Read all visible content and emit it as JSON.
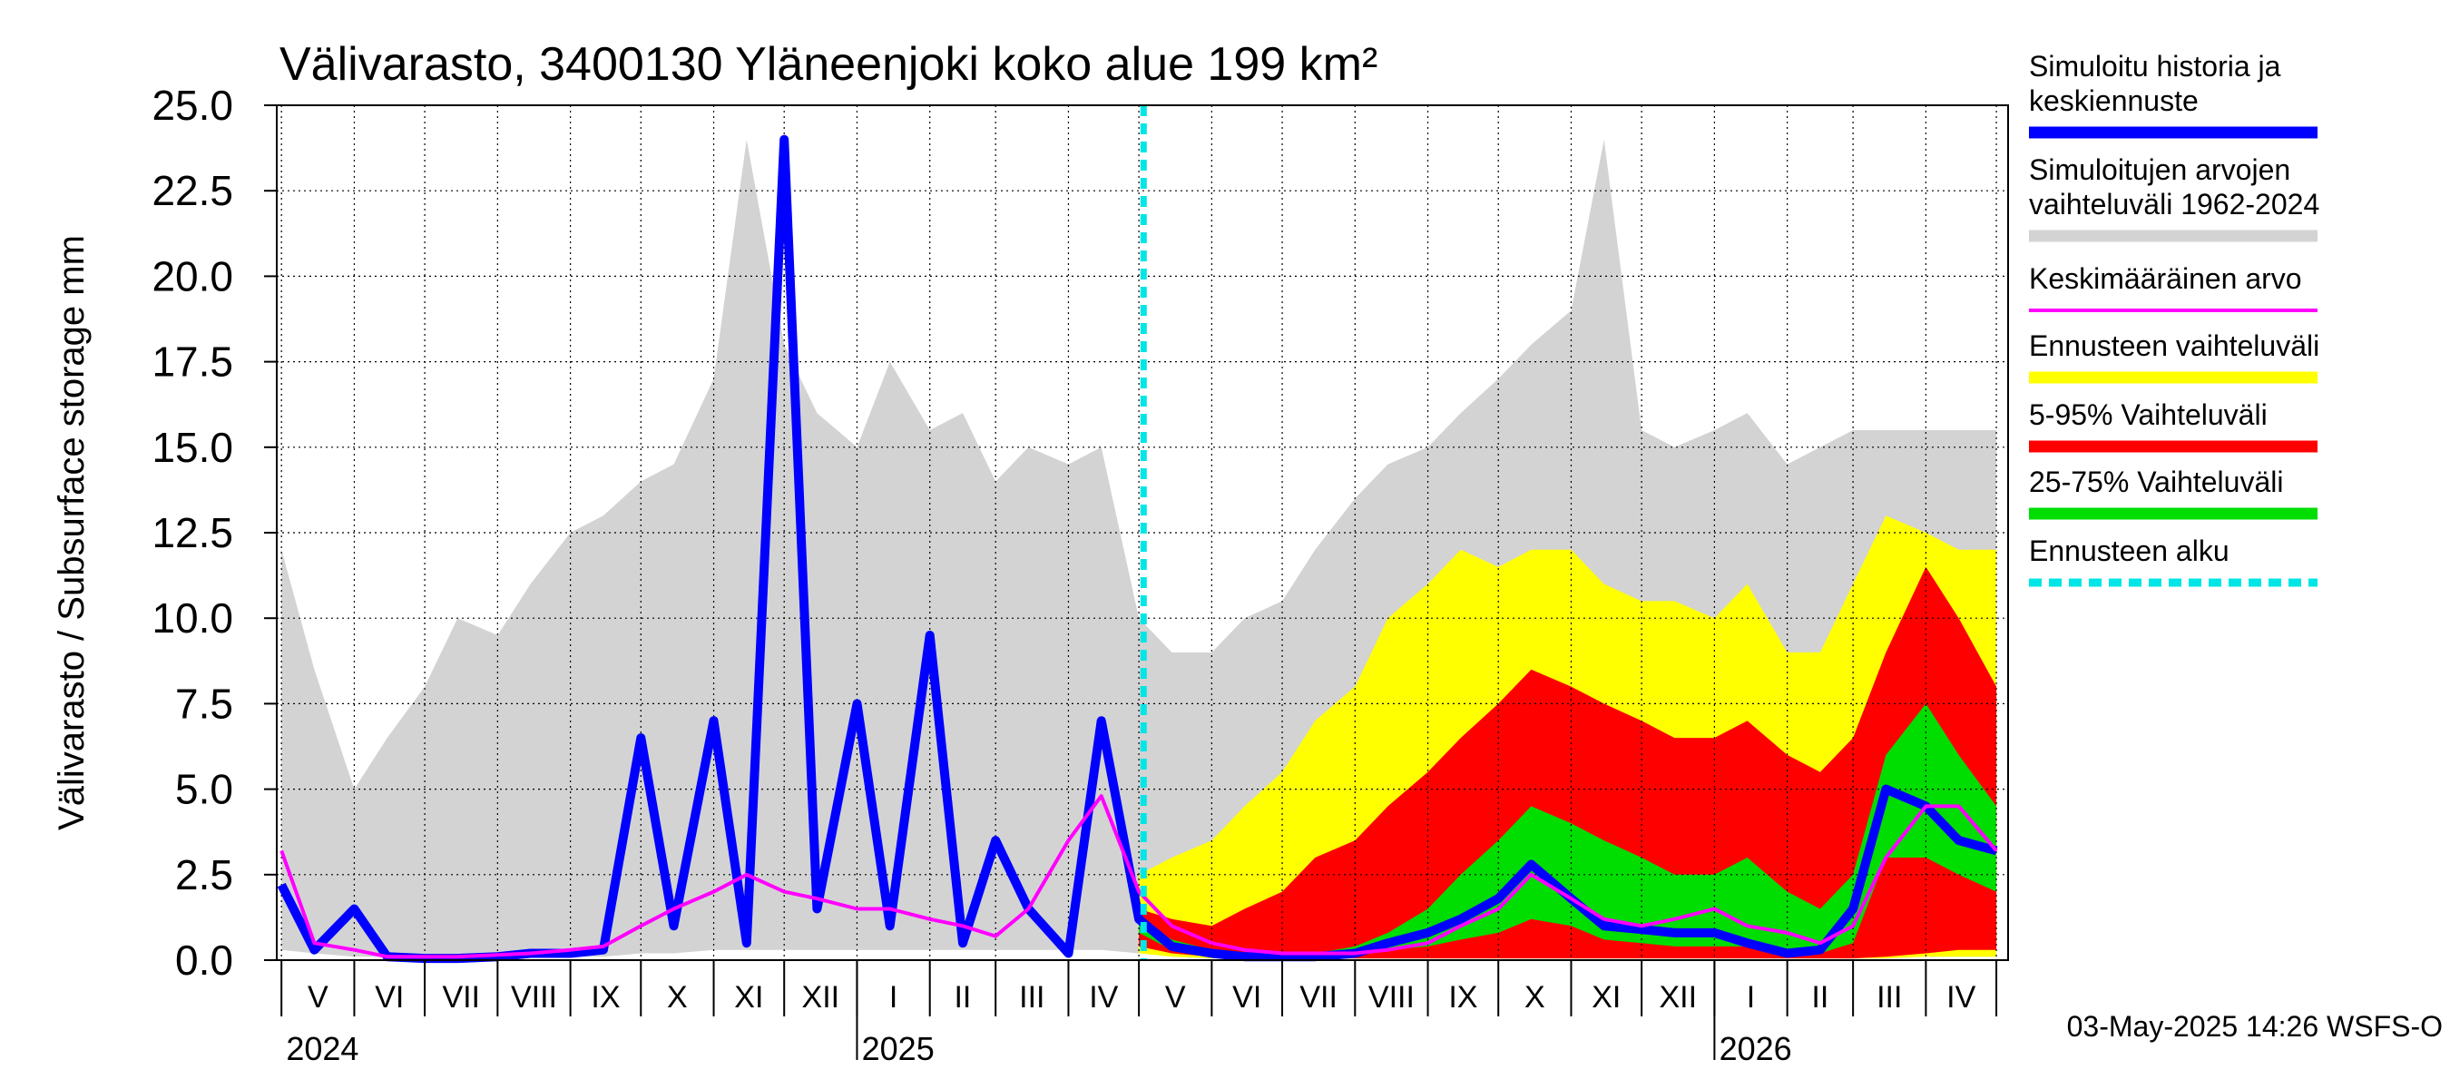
{
  "chart_data": {
    "type": "area",
    "title": "Välivarasto, 3400130 Yläneenjoki koko alue 199 km²",
    "ylabel": "Välivarasto / Subsurface storage  mm",
    "xlabel": "",
    "ylim": [
      0,
      25
    ],
    "yticks": [
      "0.0",
      "2.5",
      "5.0",
      "7.5",
      "10.0",
      "12.5",
      "15.0",
      "17.5",
      "20.0",
      "22.5",
      "25.0"
    ],
    "grid": true,
    "legend_position": "right",
    "months": [
      "V",
      "VI",
      "VII",
      "VIII",
      "IX",
      "X",
      "XI",
      "XII",
      "I",
      "II",
      "III",
      "IV",
      "V",
      "VI",
      "VII",
      "VIII",
      "IX",
      "X",
      "XI",
      "XII",
      "I",
      "II",
      "III",
      "IV"
    ],
    "years": [
      "2024",
      "2025",
      "2026"
    ],
    "forecast_start": "2025-05-03",
    "footer": "03-May-2025 14:26 WSFS-O",
    "x": [
      "2024-05-01",
      "2024-05-15",
      "2024-06-01",
      "2024-06-15",
      "2024-07-01",
      "2024-07-15",
      "2024-08-01",
      "2024-08-15",
      "2024-09-01",
      "2024-09-15",
      "2024-10-01",
      "2024-10-15",
      "2024-11-01",
      "2024-11-15",
      "2024-12-01",
      "2024-12-15",
      "2025-01-01",
      "2025-01-15",
      "2025-02-01",
      "2025-02-15",
      "2025-03-01",
      "2025-03-15",
      "2025-04-01",
      "2025-04-15",
      "2025-05-01",
      "2025-05-15",
      "2025-06-01",
      "2025-06-15",
      "2025-07-01",
      "2025-07-15",
      "2025-08-01",
      "2025-08-15",
      "2025-09-01",
      "2025-09-15",
      "2025-10-01",
      "2025-10-15",
      "2025-11-01",
      "2025-11-15",
      "2025-12-01",
      "2025-12-15",
      "2026-01-01",
      "2026-01-15",
      "2026-02-01",
      "2026-02-15",
      "2026-03-01",
      "2026-03-15",
      "2026-04-01",
      "2026-04-15",
      "2026-05-01"
    ],
    "series": [
      {
        "name": "Simuloitujen arvojen vaihteluväli 1962-2024",
        "color": "#d3d3d3",
        "upper": [
          12.0,
          8.5,
          5.0,
          6.5,
          8.0,
          10.0,
          9.5,
          11.0,
          12.5,
          13.0,
          14.0,
          14.5,
          17.0,
          24.0,
          18.0,
          16.0,
          15.0,
          17.5,
          15.5,
          16.0,
          14.0,
          15.0,
          14.5,
          15.0,
          10.0,
          9.0,
          9.0,
          10.0,
          10.5,
          12.0,
          13.5,
          14.5,
          15.0,
          16.0,
          17.0,
          18.0,
          19.0,
          24.0,
          15.5,
          15.0,
          15.5,
          16.0,
          14.5,
          15.0,
          15.5,
          15.5,
          15.5,
          15.5,
          15.5
        ],
        "lower": [
          0.3,
          0.2,
          0.1,
          0.1,
          0.1,
          0.1,
          0.1,
          0.1,
          0.1,
          0.1,
          0.2,
          0.2,
          0.3,
          0.3,
          0.3,
          0.3,
          0.3,
          0.3,
          0.3,
          0.3,
          0.3,
          0.3,
          0.3,
          0.3,
          0.2,
          0.2,
          0.1,
          0.1,
          0.1,
          0.1,
          0.1,
          0.1,
          0.1,
          0.1,
          0.1,
          0.1,
          0.1,
          0.1,
          0.1,
          0.1,
          0.1,
          0.1,
          0.1,
          0.1,
          0.1,
          0.1,
          0.1,
          0.1,
          0.1
        ]
      },
      {
        "name": "Simuloitu historia ja keskiennuste",
        "color": "#0000ff",
        "values": [
          2.2,
          0.3,
          1.5,
          0.1,
          0.05,
          0.05,
          0.1,
          0.2,
          0.2,
          0.3,
          6.5,
          1.0,
          7.0,
          0.5,
          24.0,
          1.5,
          7.5,
          1.0,
          9.5,
          0.5,
          3.5,
          1.5,
          0.2,
          7.0,
          1.2,
          0.4,
          0.2,
          0.1,
          0.1,
          0.1,
          0.2,
          0.5,
          0.8,
          1.2,
          1.8,
          2.8,
          1.8,
          1.0,
          0.9,
          0.8,
          0.8,
          0.5,
          0.2,
          0.3,
          1.5,
          5.0,
          4.5,
          3.5,
          3.2
        ]
      },
      {
        "name": "Keskimääräinen arvo",
        "color": "#ff00ff",
        "values": [
          3.2,
          0.5,
          0.3,
          0.1,
          0.1,
          0.1,
          0.15,
          0.2,
          0.3,
          0.4,
          1.0,
          1.5,
          2.0,
          2.5,
          2.0,
          1.8,
          1.5,
          1.5,
          1.2,
          1.0,
          0.7,
          1.5,
          3.5,
          4.8,
          2.0,
          1.0,
          0.5,
          0.3,
          0.2,
          0.2,
          0.2,
          0.3,
          0.5,
          1.0,
          1.5,
          2.5,
          1.8,
          1.2,
          1.0,
          1.2,
          1.5,
          1.0,
          0.8,
          0.5,
          1.0,
          3.0,
          4.5,
          4.5,
          3.2
        ]
      },
      {
        "name": "Ennusteen vaihteluväli",
        "color": "#ffff00",
        "upper": [
          null,
          null,
          null,
          null,
          null,
          null,
          null,
          null,
          null,
          null,
          null,
          null,
          null,
          null,
          null,
          null,
          null,
          null,
          null,
          null,
          null,
          null,
          null,
          null,
          2.5,
          3.0,
          3.5,
          4.5,
          5.5,
          7.0,
          8.0,
          10.0,
          11.0,
          12.0,
          11.5,
          12.0,
          12.0,
          11.0,
          10.5,
          10.5,
          10.0,
          11.0,
          9.0,
          9.0,
          11.0,
          13.0,
          12.5,
          12.0,
          12.0
        ],
        "lower": [
          null,
          null,
          null,
          null,
          null,
          null,
          null,
          null,
          null,
          null,
          null,
          null,
          null,
          null,
          null,
          null,
          null,
          null,
          null,
          null,
          null,
          null,
          null,
          null,
          0.2,
          0.1,
          0.05,
          0.05,
          0.05,
          0.05,
          0.05,
          0.05,
          0.05,
          0.05,
          0.05,
          0.05,
          0.05,
          0.05,
          0.05,
          0.05,
          0.05,
          0.05,
          0.05,
          0.05,
          0.05,
          0.05,
          0.1,
          0.1,
          0.1
        ]
      },
      {
        "name": "5-95% Vaihteluväli",
        "color": "#ff0000",
        "upper": [
          null,
          null,
          null,
          null,
          null,
          null,
          null,
          null,
          null,
          null,
          null,
          null,
          null,
          null,
          null,
          null,
          null,
          null,
          null,
          null,
          null,
          null,
          null,
          null,
          1.5,
          1.2,
          1.0,
          1.5,
          2.0,
          3.0,
          3.5,
          4.5,
          5.5,
          6.5,
          7.5,
          8.5,
          8.0,
          7.5,
          7.0,
          6.5,
          6.5,
          7.0,
          6.0,
          5.5,
          6.5,
          9.0,
          11.5,
          10.0,
          8.0
        ],
        "lower": [
          null,
          null,
          null,
          null,
          null,
          null,
          null,
          null,
          null,
          null,
          null,
          null,
          null,
          null,
          null,
          null,
          null,
          null,
          null,
          null,
          null,
          null,
          null,
          null,
          0.4,
          0.2,
          0.1,
          0.05,
          0.05,
          0.05,
          0.05,
          0.05,
          0.05,
          0.05,
          0.05,
          0.05,
          0.05,
          0.05,
          0.05,
          0.05,
          0.05,
          0.05,
          0.05,
          0.05,
          0.05,
          0.1,
          0.2,
          0.3,
          0.3
        ]
      },
      {
        "name": "25-75% Vaihteluväli",
        "color": "#00dd00",
        "upper": [
          null,
          null,
          null,
          null,
          null,
          null,
          null,
          null,
          null,
          null,
          null,
          null,
          null,
          null,
          null,
          null,
          null,
          null,
          null,
          null,
          null,
          null,
          null,
          null,
          1.2,
          0.6,
          0.3,
          0.2,
          0.2,
          0.2,
          0.4,
          0.8,
          1.5,
          2.5,
          3.5,
          4.5,
          4.0,
          3.5,
          3.0,
          2.5,
          2.5,
          3.0,
          2.0,
          1.5,
          2.5,
          6.0,
          7.5,
          6.0,
          4.5
        ],
        "lower": [
          null,
          null,
          null,
          null,
          null,
          null,
          null,
          null,
          null,
          null,
          null,
          null,
          null,
          null,
          null,
          null,
          null,
          null,
          null,
          null,
          null,
          null,
          null,
          null,
          0.8,
          0.3,
          0.15,
          0.1,
          0.1,
          0.1,
          0.15,
          0.3,
          0.4,
          0.6,
          0.8,
          1.2,
          1.0,
          0.6,
          0.5,
          0.4,
          0.4,
          0.4,
          0.2,
          0.2,
          0.5,
          3.0,
          3.0,
          2.5,
          2.0
        ]
      },
      {
        "name": "Ennusteen alku",
        "color": "#00e5e5"
      }
    ],
    "legend": [
      {
        "label": "Simuloitu historia ja keskiennuste",
        "color": "#0000ff",
        "style": "thick"
      },
      {
        "label": "Simuloitujen arvojen vaihteluväli 1962-2024",
        "color": "#d3d3d3",
        "style": "thick"
      },
      {
        "label": "Keskimääräinen arvo",
        "color": "#ff00ff",
        "style": "thin"
      },
      {
        "label": "Ennusteen vaihteluväli",
        "color": "#ffff00",
        "style": "thick"
      },
      {
        "label": "5-95% Vaihteluväli",
        "color": "#ff0000",
        "style": "thick"
      },
      {
        "label": "25-75% Vaihteluväli",
        "color": "#00dd00",
        "style": "thick"
      },
      {
        "label": "Ennusteen alku",
        "color": "#00e5e5",
        "style": "dashed"
      }
    ]
  }
}
